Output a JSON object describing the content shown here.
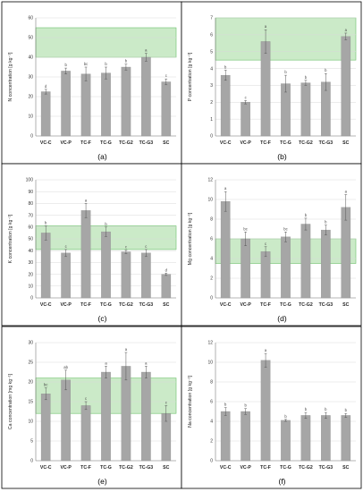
{
  "figure": {
    "page_bg": "#ffffff",
    "bar_color": "#a6a6a6",
    "band_fill": "#a9dca4",
    "band_stroke": "#6cc06a"
  },
  "chart_data": [
    {
      "type": "bar",
      "panel_label": "(a)",
      "ylabel": "N concentration [g kg⁻¹]",
      "categories": [
        "VC-C",
        "VC-P",
        "TC-F",
        "TC-G",
        "TC-G2",
        "TC-G3",
        "SC"
      ],
      "values": [
        22.5,
        33,
        31.5,
        32,
        35,
        40,
        27.5
      ],
      "errors": [
        1.2,
        1.5,
        3.5,
        3,
        1.5,
        2,
        1.5
      ],
      "letters": [
        "d",
        "b",
        "bc",
        "b",
        "b",
        "a",
        "c"
      ],
      "ylim": [
        0,
        60
      ],
      "yticks": [
        0,
        10,
        20,
        30,
        40,
        50,
        60
      ],
      "ytick_labels": [
        "0",
        "10",
        "20",
        "30",
        "40",
        "50",
        "60"
      ],
      "band": [
        40,
        55
      ],
      "grid": true
    },
    {
      "type": "bar",
      "panel_label": "(b)",
      "ylabel": "P concentration [g kg⁻¹]",
      "categories": [
        "VC-C",
        "VC-P",
        "TC-F",
        "TC-G",
        "TC-G2",
        "TC-G3",
        "SC"
      ],
      "values": [
        3.6,
        2.0,
        5.6,
        3.1,
        3.15,
        3.2,
        5.9
      ],
      "errors": [
        0.3,
        0.1,
        0.7,
        0.5,
        0.15,
        0.5,
        0.2
      ],
      "letters": [
        "b",
        "c",
        "a",
        "b",
        "b",
        "b",
        "a"
      ],
      "ylim": [
        0,
        7
      ],
      "yticks": [
        0,
        1,
        2,
        3,
        4,
        5,
        6,
        7
      ],
      "ytick_labels": [
        "0",
        "1",
        "2",
        "3",
        "4",
        "5",
        "6",
        "7"
      ],
      "band": [
        4.5,
        7
      ],
      "grid": true
    },
    {
      "type": "bar",
      "panel_label": "(c)",
      "ylabel": "K concentration [g kg⁻¹]",
      "categories": [
        "VC-C",
        "VC-P",
        "TC-F",
        "TC-G",
        "TC-G2",
        "TC-G3",
        "SC"
      ],
      "values": [
        55,
        38,
        74,
        56,
        39,
        38,
        20
      ],
      "errors": [
        6,
        3,
        6,
        4,
        1.5,
        3,
        1
      ],
      "letters": [
        "b",
        "c",
        "a",
        "b",
        "c",
        "c",
        "d"
      ],
      "ylim": [
        0,
        100
      ],
      "yticks": [
        0,
        10,
        20,
        30,
        40,
        50,
        60,
        70,
        80,
        90,
        100
      ],
      "ytick_labels": [
        "0",
        "10",
        "20",
        "30",
        "40",
        "50",
        "60",
        "70",
        "80",
        "90",
        "100"
      ],
      "band": [
        41,
        61
      ],
      "grid": true
    },
    {
      "type": "bar",
      "panel_label": "(d)",
      "ylabel": "Mg concentration [g kg⁻¹]",
      "categories": [
        "VC-C",
        "VC-P",
        "TC-F",
        "TC-G",
        "TC-G2",
        "TC-G3",
        "SC"
      ],
      "values": [
        9.8,
        6.0,
        4.7,
        6.2,
        7.5,
        6.9,
        9.2
      ],
      "errors": [
        1.0,
        0.7,
        0.5,
        0.5,
        0.6,
        0.5,
        1.3
      ],
      "letters": [
        "a",
        "bc",
        "c",
        "bc",
        "b",
        "b",
        "a"
      ],
      "ylim": [
        0,
        12
      ],
      "yticks": [
        0,
        2,
        4,
        6,
        8,
        10,
        12
      ],
      "ytick_labels": [
        "0",
        "2",
        "4",
        "6",
        "8",
        "10",
        "12"
      ],
      "band": [
        3.5,
        6
      ],
      "grid": true
    },
    {
      "type": "bar",
      "panel_label": "(e)",
      "ylabel": "Ca concentration [mg kg⁻¹]",
      "categories": [
        "VC-C",
        "VC-P",
        "TC-F",
        "TC-G",
        "TC-G2",
        "TC-G3",
        "SC"
      ],
      "values": [
        17,
        20.5,
        14,
        22.5,
        24,
        22.5,
        12
      ],
      "errors": [
        1.5,
        2.5,
        1,
        1.5,
        3.5,
        1.5,
        2
      ],
      "letters": [
        "bc",
        "ab",
        "c",
        "a",
        "a",
        "a",
        "c"
      ],
      "ylim": [
        0,
        30
      ],
      "yticks": [
        0,
        5,
        10,
        15,
        20,
        25,
        30
      ],
      "ytick_labels": [
        "0",
        "5",
        "10",
        "15",
        "20",
        "25",
        "30"
      ],
      "band": [
        12,
        21
      ],
      "grid": true
    },
    {
      "type": "bar",
      "panel_label": "(f)",
      "ylabel": "Na concentration [g kg⁻¹]",
      "categories": [
        "VC-C",
        "VC-P",
        "TC-F",
        "TC-G",
        "TC-G2",
        "TC-G3",
        "SC"
      ],
      "values": [
        5.0,
        5.0,
        10.2,
        4.1,
        4.6,
        4.6,
        4.6
      ],
      "errors": [
        0.4,
        0.3,
        0.7,
        0.1,
        0.3,
        0.3,
        0.2
      ],
      "letters": [
        "b",
        "b",
        "a",
        "b",
        "b",
        "b",
        "b"
      ],
      "ylim": [
        0,
        12
      ],
      "yticks": [
        0,
        2,
        4,
        6,
        8,
        10,
        12
      ],
      "ytick_labels": [
        "0",
        "2",
        "4",
        "6",
        "8",
        "10",
        "12"
      ],
      "band": null,
      "grid": true
    }
  ]
}
